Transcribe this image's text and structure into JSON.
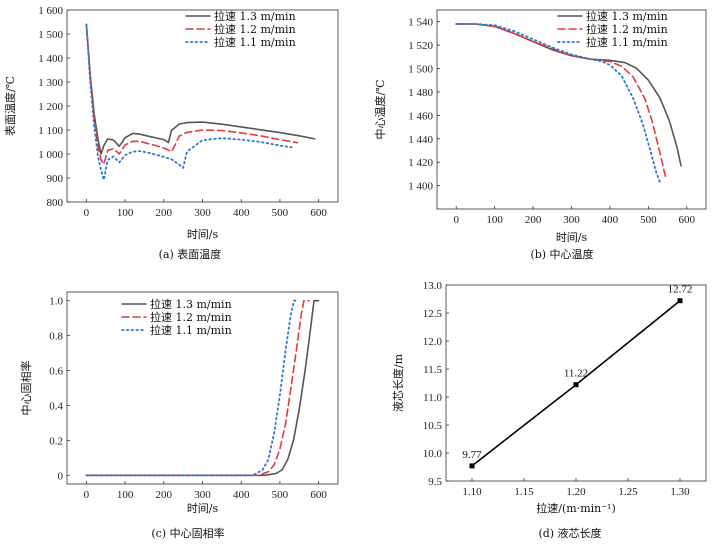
{
  "chart_data": [
    {
      "id": "a",
      "type": "line",
      "caption": "(a)  表面温度",
      "xlabel": "时间/s",
      "ylabel": "表面温度/℃",
      "xlim": [
        -50,
        650
      ],
      "ylim": [
        800,
        1600
      ],
      "xticks": [
        0,
        100,
        200,
        300,
        400,
        500,
        600
      ],
      "yticks": [
        800,
        900,
        1000,
        1100,
        1200,
        1300,
        1400,
        1500,
        1600
      ],
      "ytick_labels": [
        "800",
        "900",
        "1 000",
        "1 100",
        "1 200",
        "1 300",
        "1 400",
        "1 500",
        "1 600"
      ],
      "legend": "top-right",
      "series": [
        {
          "name": "拉速 1.3 m/min",
          "style": "solid",
          "color": "#555555",
          "x": [
            0,
            10,
            20,
            30,
            38,
            45,
            55,
            70,
            85,
            100,
            120,
            140,
            160,
            180,
            200,
            212,
            220,
            240,
            260,
            300,
            350,
            400,
            450,
            500,
            550,
            590
          ],
          "y": [
            1540,
            1330,
            1170,
            1060,
            1000,
            1035,
            1063,
            1058,
            1032,
            1068,
            1086,
            1082,
            1074,
            1067,
            1060,
            1048,
            1098,
            1125,
            1131,
            1133,
            1124,
            1113,
            1101,
            1089,
            1076,
            1063
          ]
        },
        {
          "name": "拉速 1.2 m/min",
          "style": "dashed",
          "color": "#e23b3b",
          "x": [
            0,
            10,
            20,
            30,
            38,
            45,
            55,
            70,
            85,
            100,
            120,
            140,
            160,
            180,
            200,
            220,
            230,
            240,
            260,
            300,
            350,
            400,
            450,
            500,
            545
          ],
          "y": [
            1540,
            1320,
            1150,
            1030,
            975,
            958,
            1015,
            1022,
            1000,
            1038,
            1053,
            1052,
            1043,
            1035,
            1025,
            1010,
            1040,
            1075,
            1090,
            1100,
            1098,
            1088,
            1076,
            1060,
            1047
          ]
        },
        {
          "name": "拉速 1.1 m/min",
          "style": "dotted",
          "color": "#2e78d1",
          "x": [
            0,
            10,
            20,
            30,
            38,
            45,
            55,
            70,
            85,
            100,
            120,
            140,
            160,
            180,
            200,
            220,
            240,
            250,
            260,
            300,
            350,
            400,
            450,
            500,
            530
          ],
          "y": [
            1540,
            1300,
            1120,
            990,
            930,
            892,
            975,
            990,
            965,
            995,
            1010,
            1012,
            1005,
            997,
            988,
            978,
            955,
            942,
            1010,
            1058,
            1066,
            1060,
            1050,
            1035,
            1028
          ]
        }
      ]
    },
    {
      "id": "b",
      "type": "line",
      "caption": "(b)  中心温度",
      "xlabel": "时间/s",
      "ylabel": "中心温度/℃",
      "xlim": [
        -50,
        650
      ],
      "ylim": [
        1380,
        1550
      ],
      "xticks": [
        0,
        100,
        200,
        300,
        400,
        500,
        600
      ],
      "yticks": [
        1400,
        1420,
        1440,
        1460,
        1480,
        1500,
        1520,
        1540
      ],
      "ytick_labels": [
        "1 400",
        "1 420",
        "1 440",
        "1 460",
        "1 480",
        "1 500",
        "1 520",
        "1 540"
      ],
      "legend": "top-right",
      "series": [
        {
          "name": "拉速 1.3 m/min",
          "style": "solid",
          "color": "#555555",
          "x": [
            0,
            50,
            100,
            150,
            200,
            250,
            300,
            350,
            400,
            440,
            470,
            500,
            530,
            555,
            575,
            585
          ],
          "y": [
            1538,
            1538,
            1536,
            1530,
            1523,
            1516,
            1511,
            1508,
            1507,
            1505,
            1500,
            1490,
            1475,
            1455,
            1432,
            1417
          ]
        },
        {
          "name": "拉速 1.2 m/min",
          "style": "dashed",
          "color": "#e23b3b",
          "x": [
            0,
            50,
            100,
            150,
            200,
            250,
            300,
            350,
            400,
            430,
            460,
            490,
            510,
            530,
            545
          ],
          "y": [
            1538,
            1538,
            1536,
            1530,
            1523,
            1517,
            1511,
            1508,
            1506,
            1502,
            1493,
            1475,
            1455,
            1428,
            1407
          ]
        },
        {
          "name": "拉速 1.1 m/min",
          "style": "dotted",
          "color": "#2e78d1",
          "x": [
            0,
            50,
            100,
            150,
            200,
            250,
            300,
            350,
            380,
            400,
            430,
            460,
            485,
            505,
            520,
            530
          ],
          "y": [
            1538,
            1538,
            1537,
            1532,
            1525,
            1518,
            1512,
            1508,
            1506,
            1503,
            1494,
            1475,
            1453,
            1430,
            1412,
            1403
          ]
        }
      ]
    },
    {
      "id": "c",
      "type": "line",
      "caption": "(c)  中心固相率",
      "xlabel": "时间/s",
      "ylabel": "中心固相率",
      "xlim": [
        -50,
        650
      ],
      "ylim": [
        -0.05,
        1.05
      ],
      "xticks": [
        0,
        100,
        200,
        300,
        400,
        500,
        600
      ],
      "yticks": [
        0,
        0.2,
        0.4,
        0.6,
        0.8,
        1.0
      ],
      "ytick_labels": [
        "0",
        "0.2",
        "0.4",
        "0.6",
        "0.8",
        "1.0"
      ],
      "legend": "top-left",
      "series": [
        {
          "name": "拉速 1.3 m/min",
          "style": "solid",
          "color": "#555555",
          "x": [
            0,
            100,
            200,
            300,
            400,
            460,
            490,
            505,
            520,
            535,
            550,
            565,
            578,
            588,
            600
          ],
          "y": [
            0,
            0,
            0,
            0,
            0,
            0,
            0.01,
            0.03,
            0.09,
            0.2,
            0.38,
            0.6,
            0.82,
            1.0,
            1.0
          ]
        },
        {
          "name": "拉速 1.2 m/min",
          "style": "dashed",
          "color": "#e23b3b",
          "x": [
            0,
            100,
            200,
            300,
            400,
            445,
            470,
            485,
            500,
            515,
            530,
            545,
            555,
            562,
            575
          ],
          "y": [
            0,
            0,
            0,
            0,
            0,
            0,
            0.02,
            0.06,
            0.15,
            0.3,
            0.52,
            0.76,
            0.92,
            1.0,
            1.0
          ]
        },
        {
          "name": "拉速 1.1 m/min",
          "style": "dotted",
          "color": "#2e78d1",
          "x": [
            0,
            100,
            200,
            300,
            400,
            430,
            455,
            470,
            485,
            500,
            515,
            528,
            536,
            548
          ],
          "y": [
            0,
            0,
            0,
            0,
            0,
            0,
            0.03,
            0.09,
            0.24,
            0.46,
            0.72,
            0.92,
            1.0,
            1.0
          ]
        }
      ]
    },
    {
      "id": "d",
      "type": "scatter",
      "caption": "(d)  液芯长度",
      "xlabel": "拉速/(m·min⁻¹)",
      "ylabel": "液芯长度/m",
      "xlim": [
        1.075,
        1.325
      ],
      "ylim": [
        9.5,
        13.0
      ],
      "xticks": [
        1.1,
        1.15,
        1.2,
        1.25,
        1.3
      ],
      "xtick_labels": [
        "1.10",
        "1.15",
        "1.20",
        "1.25",
        "1.30"
      ],
      "yticks": [
        9.5,
        10.0,
        10.5,
        11.0,
        11.5,
        12.0,
        12.5,
        13.0
      ],
      "ytick_labels": [
        "9.5",
        "10.0",
        "10.5",
        "11.0",
        "11.5",
        "12.0",
        "12.5",
        "13.0"
      ],
      "series": [
        {
          "name": "液芯长度",
          "style": "solid",
          "color": "#000000",
          "x": [
            1.1,
            1.2,
            1.3
          ],
          "y": [
            9.77,
            11.22,
            12.72
          ],
          "labels": [
            "9.77",
            "11.22",
            "12.72"
          ]
        }
      ]
    }
  ]
}
